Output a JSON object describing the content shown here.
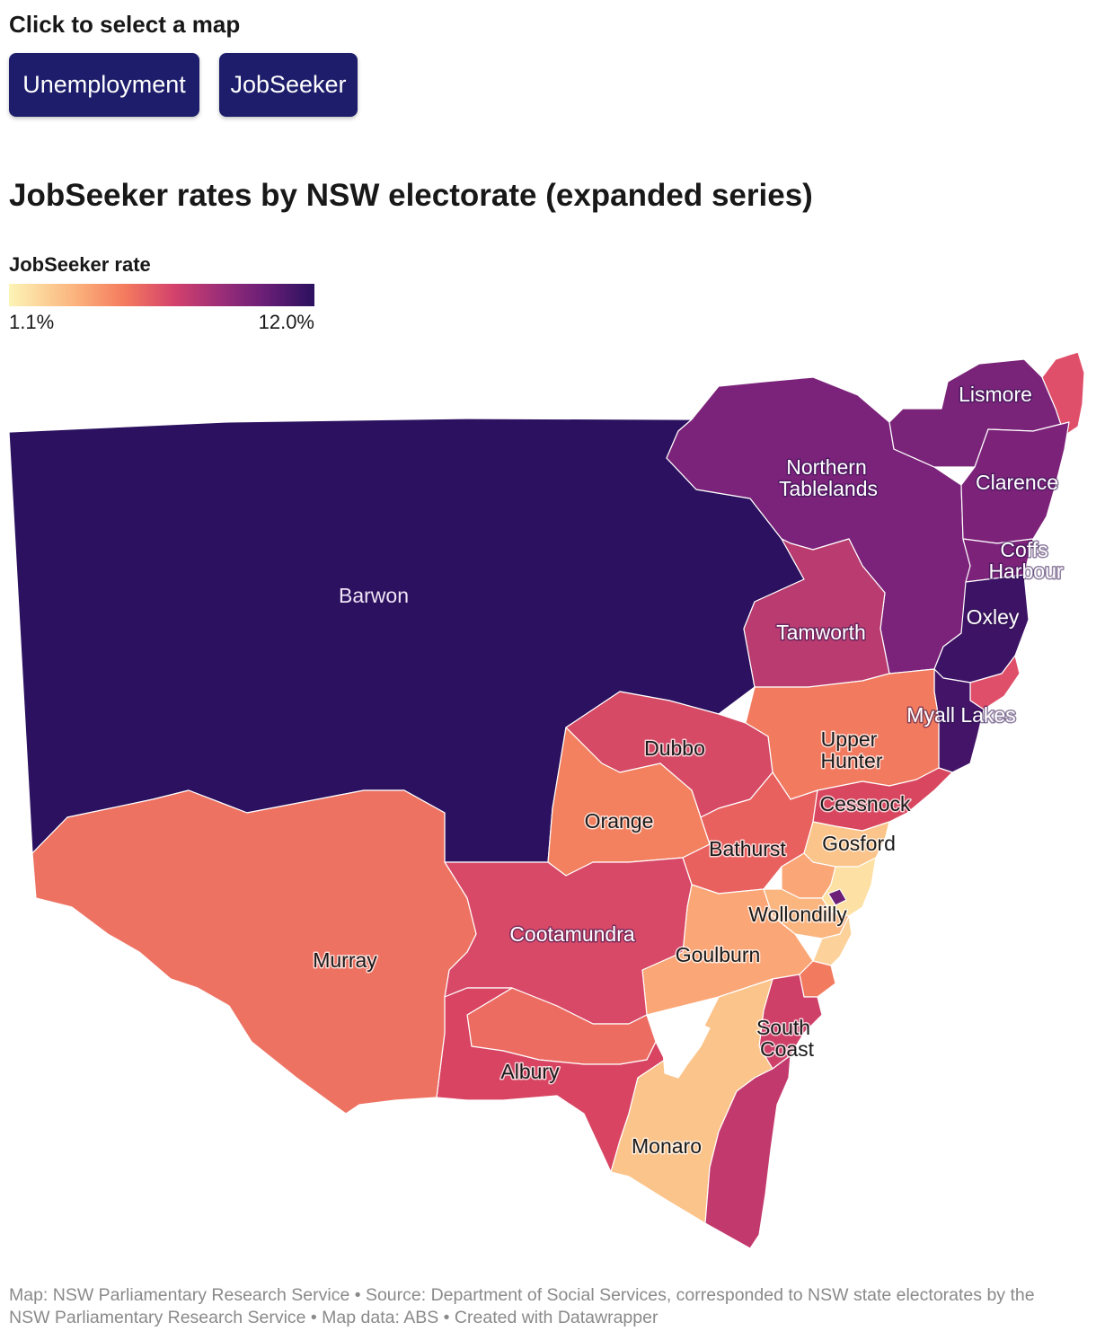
{
  "controls": {
    "prompt": "Click to select a map",
    "buttons": [
      "Unemployment",
      "JobSeeker"
    ]
  },
  "title": "JobSeeker rates by NSW electorate (expanded series)",
  "legend": {
    "title": "JobSeeker rate",
    "min_label": "1.1%",
    "max_label": "12.0%",
    "colors": [
      "#fcf4b6",
      "#fbb27c",
      "#f47a5e",
      "#d4426c",
      "#a02f77",
      "#6c1f77",
      "#2b115f"
    ]
  },
  "map": {
    "labels": [
      "Lismore",
      "Northern Tablelands",
      "Clarence",
      "Coffs Harbour",
      "Barwon",
      "Oxley",
      "Tamworth",
      "Myall Lakes",
      "Upper Hunter",
      "Dubbo",
      "Cessnock",
      "Orange",
      "Gosford",
      "Bathurst",
      "Wollondilly",
      "Murray",
      "Cootamundra",
      "Goulburn",
      "South Coast",
      "Albury",
      "Monaro"
    ]
  },
  "footer": "Map: NSW Parliamentary Research Service • Source: Department of Social Services, corresponded to NSW state electorates by the NSW Parliamentary Research Service • Map data: ABS • Created with Datawrapper"
}
